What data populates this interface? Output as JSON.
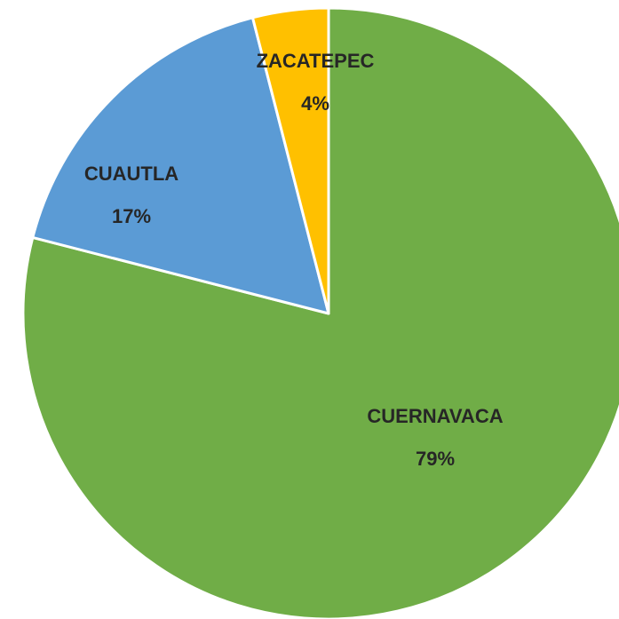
{
  "chart_data": {
    "type": "pie",
    "categories": [
      "CUERNAVACA",
      "CUAUTLA",
      "ZACATEPEC"
    ],
    "values": [
      79,
      17,
      4
    ],
    "value_labels": [
      "79%",
      "17%",
      "4%"
    ],
    "colors": [
      "#70ad47",
      "#5b9bd5",
      "#ffc000"
    ]
  }
}
